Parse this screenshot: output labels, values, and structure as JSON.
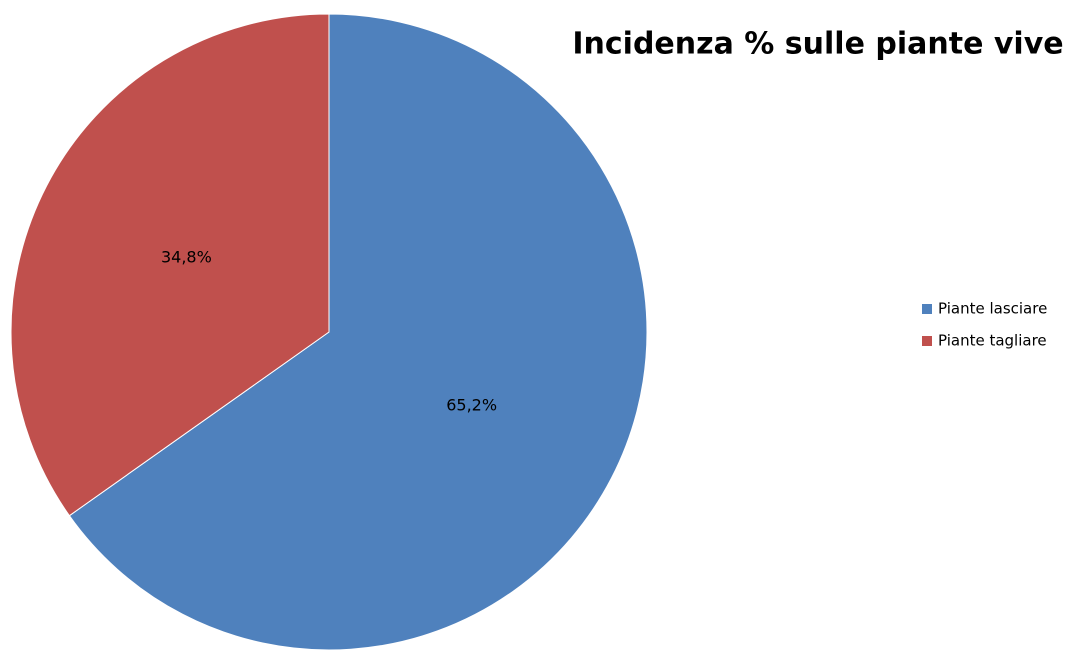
{
  "chart_data": {
    "type": "pie",
    "title": "Incidenza % sulle piante vive",
    "categories": [
      "Piante lasciare",
      "Piante tagliare"
    ],
    "values": [
      65.2,
      34.8
    ],
    "value_labels": [
      "65,2%",
      "34,8%"
    ],
    "colors": [
      "#4f81bd",
      "#c0504d"
    ],
    "legend": "right"
  }
}
